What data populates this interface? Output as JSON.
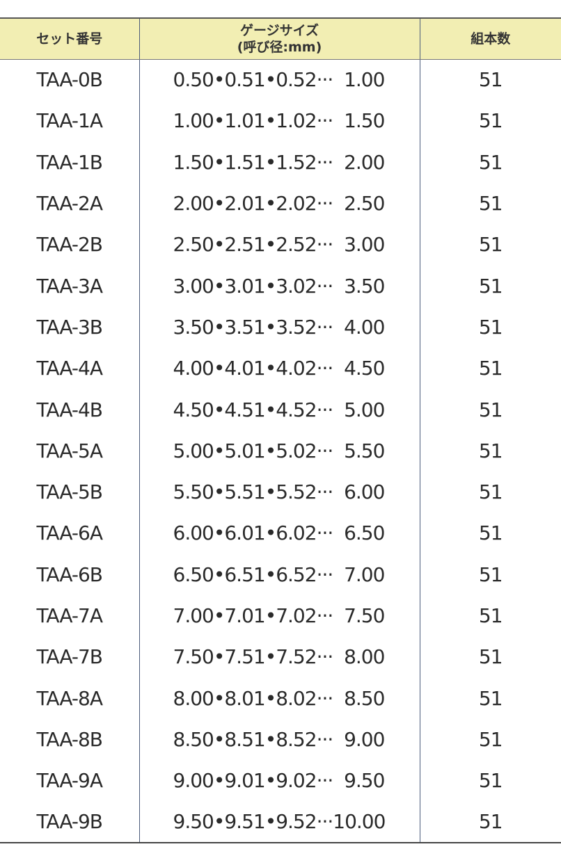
{
  "header": {
    "set_number": "セット番号",
    "gauge_size_line1": "ゲージサイズ",
    "gauge_size_line2": "(呼び径:mm)",
    "count": "組本数"
  },
  "header_bg_color": "#f2eeb3",
  "rows": [
    {
      "set": "TAA-0B",
      "size": "0.50•0.51•0.52···  1.00",
      "count": "51"
    },
    {
      "set": "TAA-1A",
      "size": "1.00•1.01•1.02···  1.50",
      "count": "51"
    },
    {
      "set": "TAA-1B",
      "size": "1.50•1.51•1.52···  2.00",
      "count": "51"
    },
    {
      "set": "TAA-2A",
      "size": "2.00•2.01•2.02···  2.50",
      "count": "51"
    },
    {
      "set": "TAA-2B",
      "size": "2.50•2.51•2.52···  3.00",
      "count": "51"
    },
    {
      "set": "TAA-3A",
      "size": "3.00•3.01•3.02···  3.50",
      "count": "51"
    },
    {
      "set": "TAA-3B",
      "size": "3.50•3.51•3.52···  4.00",
      "count": "51"
    },
    {
      "set": "TAA-4A",
      "size": "4.00•4.01•4.02···  4.50",
      "count": "51"
    },
    {
      "set": "TAA-4B",
      "size": "4.50•4.51•4.52···  5.00",
      "count": "51"
    },
    {
      "set": "TAA-5A",
      "size": "5.00•5.01•5.02···  5.50",
      "count": "51"
    },
    {
      "set": "TAA-5B",
      "size": "5.50•5.51•5.52···  6.00",
      "count": "51"
    },
    {
      "set": "TAA-6A",
      "size": "6.00•6.01•6.02···  6.50",
      "count": "51"
    },
    {
      "set": "TAA-6B",
      "size": "6.50•6.51•6.52···  7.00",
      "count": "51"
    },
    {
      "set": "TAA-7A",
      "size": "7.00•7.01•7.02···  7.50",
      "count": "51"
    },
    {
      "set": "TAA-7B",
      "size": "7.50•7.51•7.52···  8.00",
      "count": "51"
    },
    {
      "set": "TAA-8A",
      "size": "8.00•8.01•8.02···  8.50",
      "count": "51"
    },
    {
      "set": "TAA-8B",
      "size": "8.50•8.51•8.52···  9.00",
      "count": "51"
    },
    {
      "set": "TAA-9A",
      "size": "9.00•9.01•9.02···  9.50",
      "count": "51"
    },
    {
      "set": "TAA-9B",
      "size": "9.50•9.51•9.52···10.00",
      "count": "51"
    }
  ]
}
